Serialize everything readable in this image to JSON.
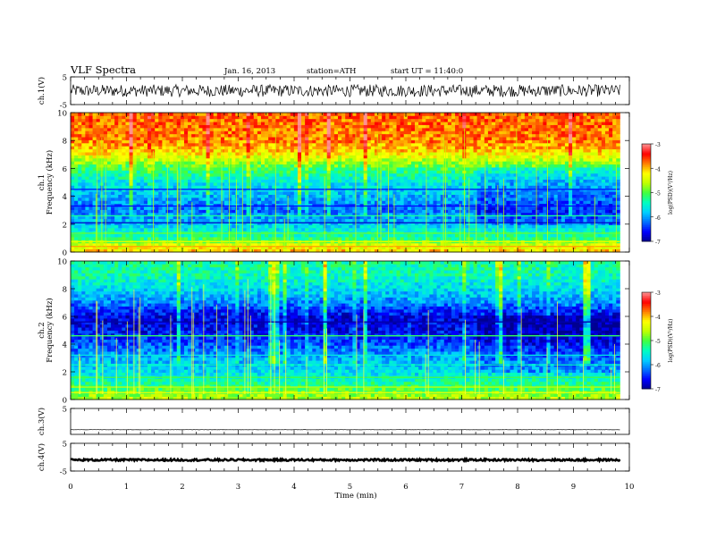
{
  "header": {
    "title": "VLF Spectra",
    "date": "Jan. 16, 2013",
    "station": "station=ATH",
    "start": "start UT = 11:40:0"
  },
  "colors": {
    "background": "#ffffff",
    "axis": "#000000",
    "colormap": [
      "#000090",
      "#0000ff",
      "#0070ff",
      "#00d0ff",
      "#00ffc0",
      "#40ff40",
      "#c0ff00",
      "#ffff00",
      "#ff8000",
      "#ff0000",
      "#ff9090",
      "#ffffff"
    ]
  },
  "chart_data": [
    {
      "type": "line",
      "panel": "ch1_waveform",
      "ylabel": "ch.1(V)",
      "ylim": [
        -5,
        5
      ],
      "yticks": [
        "5",
        "-5"
      ],
      "xlim": [
        0,
        10
      ],
      "x_end": 9.83,
      "grid": false,
      "trace": {
        "baseline": 0,
        "amplitude": 2.2,
        "color": "#000000"
      }
    },
    {
      "type": "heatmap",
      "panel": "ch1_spectrogram",
      "ylabel": "ch.1\nFrequency (kHz)",
      "ylabel_lines": [
        "ch.1",
        "Frequency (kHz)"
      ],
      "ylim": [
        0,
        10
      ],
      "yticks": [
        "0",
        "2",
        "4",
        "6",
        "8",
        "10"
      ],
      "xlim": [
        0,
        10
      ],
      "x_end": 9.83,
      "colorbar": {
        "label": "log(PSD)(V²/Hz)",
        "range": [
          -7,
          -3
        ],
        "ticks": [
          "-3",
          "-4",
          "-5",
          "-6",
          "-7"
        ]
      },
      "profile": [
        {
          "f": 0,
          "logpsd": -4.0
        },
        {
          "f": 0.5,
          "logpsd": -4.4
        },
        {
          "f": 1.0,
          "logpsd": -5.2
        },
        {
          "f": 2.0,
          "logpsd": -5.8
        },
        {
          "f": 3.0,
          "logpsd": -6.2
        },
        {
          "f": 4.0,
          "logpsd": -5.9
        },
        {
          "f": 5.0,
          "logpsd": -5.6
        },
        {
          "f": 6.0,
          "logpsd": -5.1
        },
        {
          "f": 6.6,
          "logpsd": -4.6
        },
        {
          "f": 7.2,
          "logpsd": -4.1
        },
        {
          "f": 8.0,
          "logpsd": -3.8
        },
        {
          "f": 10.0,
          "logpsd": -3.7
        }
      ],
      "lines": [
        {
          "f": 0.4,
          "logpsd": -3.9
        },
        {
          "f": 0.75,
          "logpsd": -4.4
        },
        {
          "f": 1.35,
          "logpsd": -4.9
        },
        {
          "f": 2.1,
          "logpsd": -6.8
        },
        {
          "f": 2.6,
          "logpsd": -5.3
        },
        {
          "f": 3.3,
          "logpsd": -6.6
        },
        {
          "f": 4.5,
          "logpsd": -6.5
        }
      ],
      "change_at": 7.28
    },
    {
      "type": "heatmap",
      "panel": "ch2_spectrogram",
      "ylabel": "ch.2\nFrequency (kHz)",
      "ylabel_lines": [
        "ch.2",
        "Frequency (kHz)"
      ],
      "ylim": [
        0,
        10
      ],
      "yticks": [
        "0",
        "2",
        "4",
        "6",
        "8",
        "10"
      ],
      "xlim": [
        0,
        10
      ],
      "x_end": 9.83,
      "colorbar": {
        "label": "log(PSD)(V²/Hz)",
        "range": [
          -7,
          -3
        ],
        "ticks": [
          "-3",
          "-4",
          "-5",
          "-6",
          "-7"
        ]
      },
      "profile": [
        {
          "f": 0,
          "logpsd": -4.5
        },
        {
          "f": 1.0,
          "logpsd": -5.2
        },
        {
          "f": 2.0,
          "logpsd": -5.7
        },
        {
          "f": 3.0,
          "logpsd": -5.9
        },
        {
          "f": 4.0,
          "logpsd": -6.3
        },
        {
          "f": 5.0,
          "logpsd": -6.6
        },
        {
          "f": 6.0,
          "logpsd": -6.7
        },
        {
          "f": 7.0,
          "logpsd": -6.1
        },
        {
          "f": 8.0,
          "logpsd": -5.7
        },
        {
          "f": 9.0,
          "logpsd": -5.4
        },
        {
          "f": 10.0,
          "logpsd": -5.3
        }
      ],
      "lines": [
        {
          "f": 0.5,
          "logpsd": -4.3
        },
        {
          "f": 0.9,
          "logpsd": -4.6
        },
        {
          "f": 1.6,
          "logpsd": -5.0
        },
        {
          "f": 2.5,
          "logpsd": -5.4
        },
        {
          "f": 3.2,
          "logpsd": -5.6
        },
        {
          "f": 4.6,
          "logpsd": -5.1
        },
        {
          "f": 5.6,
          "logpsd": -6.9
        }
      ],
      "change_at": 7.28
    },
    {
      "type": "line",
      "panel": "ch3_waveform",
      "ylabel": "ch.3(V)",
      "ylim": [
        -5,
        5
      ],
      "yticks": [
        "5"
      ],
      "xlim": [
        0,
        10
      ],
      "x_end": 9.83,
      "grid": false,
      "trace": {
        "baseline": -3.2,
        "amplitude": 0.05,
        "color": "#000000"
      }
    },
    {
      "type": "line",
      "panel": "ch4_waveform",
      "ylabel": "ch.4(V)",
      "ylim": [
        -5,
        5
      ],
      "yticks": [
        "5",
        "-5"
      ],
      "xlim": [
        0,
        10
      ],
      "x_end": 9.83,
      "grid": false,
      "trace": {
        "baseline": -1.0,
        "amplitude": 0.35,
        "color": "#000000"
      }
    }
  ],
  "xaxis": {
    "label": "Time (min)",
    "ticks": [
      "0",
      "1",
      "2",
      "3",
      "4",
      "5",
      "6",
      "7",
      "8",
      "9",
      "10"
    ]
  }
}
